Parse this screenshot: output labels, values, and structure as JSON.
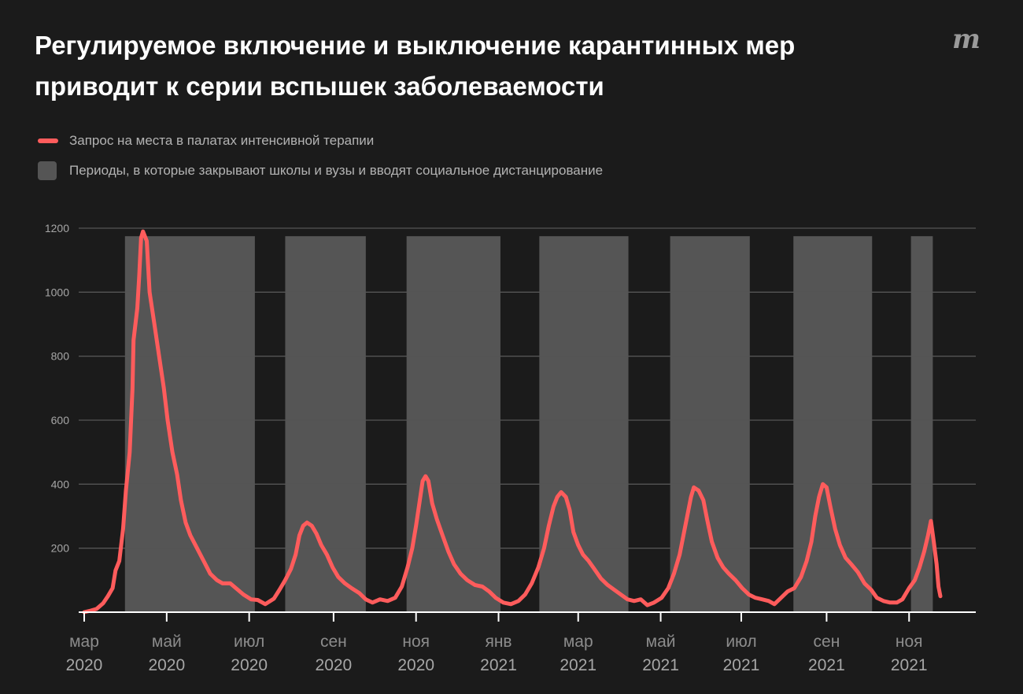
{
  "title": "Регулируемое включение и выключение карантинных мер приводит к серии вспышек заболеваемости",
  "logo_text": "m",
  "legend": {
    "line_label": "Запрос на места в палатах интенсивной терапии",
    "band_label": "Периоды, в которые закрывают школы и вузы и вводят социальное дистанцирование"
  },
  "colors": {
    "background": "#1b1b1b",
    "line": "#ff5c5c",
    "band": "#555555",
    "grid": "#555555",
    "axis": "#ffffff",
    "tick_text": "#a6a6a6",
    "month_text": "#8c8c8c",
    "year_text": "#a6a6a6"
  },
  "chart_data": {
    "type": "line",
    "title": "Регулируемое включение и выключение карантинных мер приводит к серии вспышек заболеваемости",
    "xlabel": "",
    "ylabel": "",
    "x_unit": "weeks since 2020-03-01",
    "xlim": [
      0,
      92.5
    ],
    "ylim": [
      0,
      1200
    ],
    "grid": true,
    "legend_position": "top-left",
    "yticks": [
      200,
      400,
      600,
      800,
      1000,
      1200
    ],
    "xticks": [
      {
        "x": 0.0,
        "month": "мар",
        "year": "2020"
      },
      {
        "x": 8.7,
        "month": "май",
        "year": "2020"
      },
      {
        "x": 17.4,
        "month": "июл",
        "year": "2020"
      },
      {
        "x": 26.3,
        "month": "сен",
        "year": "2020"
      },
      {
        "x": 35.0,
        "month": "ноя",
        "year": "2020"
      },
      {
        "x": 43.7,
        "month": "янв",
        "year": "2021"
      },
      {
        "x": 52.1,
        "month": "мар",
        "year": "2021"
      },
      {
        "x": 60.8,
        "month": "май",
        "year": "2021"
      },
      {
        "x": 69.3,
        "month": "июл",
        "year": "2021"
      },
      {
        "x": 78.3,
        "month": "сен",
        "year": "2021"
      },
      {
        "x": 87.0,
        "month": "ноя",
        "year": "2021"
      }
    ],
    "bands": [
      {
        "start": 4.3,
        "end": 18.0
      },
      {
        "start": 21.2,
        "end": 29.7
      },
      {
        "start": 34.0,
        "end": 43.9
      },
      {
        "start": 48.0,
        "end": 57.4
      },
      {
        "start": 61.8,
        "end": 70.2
      },
      {
        "start": 74.8,
        "end": 83.1
      },
      {
        "start": 87.2,
        "end": 89.5
      }
    ],
    "series": [
      {
        "name": "Запрос на места в палатах интенсивной терапии",
        "points": [
          [
            0,
            0
          ],
          [
            0.7,
            5
          ],
          [
            1.3,
            10
          ],
          [
            2,
            28
          ],
          [
            2.5,
            50
          ],
          [
            3,
            75
          ],
          [
            3.3,
            130
          ],
          [
            3.7,
            160
          ],
          [
            4.1,
            260
          ],
          [
            4.4,
            380
          ],
          [
            4.8,
            500
          ],
          [
            5.1,
            700
          ],
          [
            5.2,
            850
          ],
          [
            5.6,
            950
          ],
          [
            5.8,
            1050
          ],
          [
            6.0,
            1170
          ],
          [
            6.2,
            1190
          ],
          [
            6.6,
            1160
          ],
          [
            6.9,
            1000
          ],
          [
            7.4,
            900
          ],
          [
            7.9,
            800
          ],
          [
            8.4,
            700
          ],
          [
            8.8,
            600
          ],
          [
            9.3,
            500
          ],
          [
            9.8,
            430
          ],
          [
            10.2,
            350
          ],
          [
            10.7,
            280
          ],
          [
            11.2,
            240
          ],
          [
            11.9,
            200
          ],
          [
            12.6,
            160
          ],
          [
            13.3,
            120
          ],
          [
            14.0,
            100
          ],
          [
            14.6,
            90
          ],
          [
            15.4,
            90
          ],
          [
            16.0,
            75
          ],
          [
            16.8,
            55
          ],
          [
            17.6,
            40
          ],
          [
            18.3,
            38
          ],
          [
            19.1,
            25
          ],
          [
            20.0,
            42
          ],
          [
            20.6,
            70
          ],
          [
            21.2,
            100
          ],
          [
            21.8,
            135
          ],
          [
            22.3,
            180
          ],
          [
            22.7,
            240
          ],
          [
            23.1,
            270
          ],
          [
            23.5,
            280
          ],
          [
            24.0,
            270
          ],
          [
            24.5,
            245
          ],
          [
            25.0,
            210
          ],
          [
            25.6,
            180
          ],
          [
            26.2,
            140
          ],
          [
            26.8,
            110
          ],
          [
            27.5,
            90
          ],
          [
            28.2,
            75
          ],
          [
            29.0,
            60
          ],
          [
            29.7,
            40
          ],
          [
            30.4,
            30
          ],
          [
            31.2,
            40
          ],
          [
            32.0,
            35
          ],
          [
            32.8,
            45
          ],
          [
            33.5,
            80
          ],
          [
            34.1,
            140
          ],
          [
            34.6,
            200
          ],
          [
            35.0,
            270
          ],
          [
            35.4,
            350
          ],
          [
            35.7,
            410
          ],
          [
            36.0,
            425
          ],
          [
            36.3,
            410
          ],
          [
            36.7,
            340
          ],
          [
            37.2,
            290
          ],
          [
            37.8,
            240
          ],
          [
            38.4,
            190
          ],
          [
            39.0,
            150
          ],
          [
            39.7,
            120
          ],
          [
            40.4,
            100
          ],
          [
            41.2,
            85
          ],
          [
            42.0,
            80
          ],
          [
            42.7,
            65
          ],
          [
            43.4,
            45
          ],
          [
            44.2,
            30
          ],
          [
            45.0,
            25
          ],
          [
            45.8,
            35
          ],
          [
            46.5,
            55
          ],
          [
            47.2,
            90
          ],
          [
            47.9,
            140
          ],
          [
            48.5,
            200
          ],
          [
            49.0,
            270
          ],
          [
            49.5,
            330
          ],
          [
            49.9,
            360
          ],
          [
            50.3,
            375
          ],
          [
            50.8,
            360
          ],
          [
            51.2,
            320
          ],
          [
            51.6,
            250
          ],
          [
            52.1,
            210
          ],
          [
            52.6,
            180
          ],
          [
            53.2,
            160
          ],
          [
            53.8,
            135
          ],
          [
            54.5,
            105
          ],
          [
            55.2,
            85
          ],
          [
            55.9,
            70
          ],
          [
            56.6,
            55
          ],
          [
            57.3,
            40
          ],
          [
            58.0,
            35
          ],
          [
            58.7,
            40
          ],
          [
            59.4,
            22
          ],
          [
            60.1,
            30
          ],
          [
            60.9,
            45
          ],
          [
            61.6,
            75
          ],
          [
            62.2,
            120
          ],
          [
            62.8,
            180
          ],
          [
            63.2,
            240
          ],
          [
            63.6,
            300
          ],
          [
            64.0,
            360
          ],
          [
            64.3,
            390
          ],
          [
            64.8,
            380
          ],
          [
            65.3,
            350
          ],
          [
            65.7,
            290
          ],
          [
            66.2,
            220
          ],
          [
            66.8,
            170
          ],
          [
            67.4,
            140
          ],
          [
            68.0,
            120
          ],
          [
            68.7,
            100
          ],
          [
            69.4,
            75
          ],
          [
            70.1,
            55
          ],
          [
            70.8,
            45
          ],
          [
            71.5,
            40
          ],
          [
            72.2,
            35
          ],
          [
            72.8,
            25
          ],
          [
            73.5,
            45
          ],
          [
            74.2,
            65
          ],
          [
            74.9,
            75
          ],
          [
            75.6,
            110
          ],
          [
            76.2,
            160
          ],
          [
            76.7,
            220
          ],
          [
            77.1,
            300
          ],
          [
            77.5,
            360
          ],
          [
            77.9,
            400
          ],
          [
            78.3,
            390
          ],
          [
            78.7,
            330
          ],
          [
            79.2,
            260
          ],
          [
            79.7,
            210
          ],
          [
            80.3,
            170
          ],
          [
            80.9,
            150
          ],
          [
            81.6,
            125
          ],
          [
            82.3,
            90
          ],
          [
            83.0,
            70
          ],
          [
            83.6,
            45
          ],
          [
            84.3,
            35
          ],
          [
            85.0,
            30
          ],
          [
            85.7,
            30
          ],
          [
            86.3,
            40
          ],
          [
            87.0,
            75
          ],
          [
            87.6,
            100
          ],
          [
            88.1,
            140
          ],
          [
            88.6,
            190
          ],
          [
            89.0,
            240
          ],
          [
            89.3,
            285
          ],
          [
            89.6,
            220
          ],
          [
            89.9,
            150
          ],
          [
            90.1,
            80
          ],
          [
            90.3,
            50
          ]
        ]
      }
    ]
  }
}
